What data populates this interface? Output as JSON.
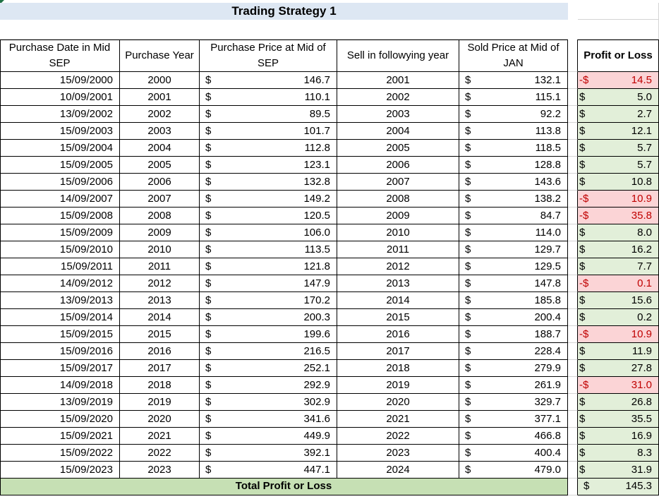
{
  "title": "Trading Strategy  1",
  "headers": {
    "purchase_date": "Purchase Date in Mid SEP",
    "purchase_year": "Purchase Year",
    "purchase_price": "Purchase Price at Mid of SEP",
    "sell_year": "Sell in followying year",
    "sold_price": "Sold Price at Mid of JAN",
    "profit": "Profit or Loss"
  },
  "currency_symbol": "$",
  "negative_currency_symbol": "-$",
  "rows": [
    {
      "date": "15/09/2000",
      "year": "2000",
      "buy": "146.7",
      "sell_year": "2001",
      "sold": "132.1",
      "pl": "14.5",
      "neg": true
    },
    {
      "date": "10/09/2001",
      "year": "2001",
      "buy": "110.1",
      "sell_year": "2002",
      "sold": "115.1",
      "pl": "5.0",
      "neg": false
    },
    {
      "date": "13/09/2002",
      "year": "2002",
      "buy": "89.5",
      "sell_year": "2003",
      "sold": "92.2",
      "pl": "2.7",
      "neg": false
    },
    {
      "date": "15/09/2003",
      "year": "2003",
      "buy": "101.7",
      "sell_year": "2004",
      "sold": "113.8",
      "pl": "12.1",
      "neg": false
    },
    {
      "date": "15/09/2004",
      "year": "2004",
      "buy": "112.8",
      "sell_year": "2005",
      "sold": "118.5",
      "pl": "5.7",
      "neg": false
    },
    {
      "date": "15/09/2005",
      "year": "2005",
      "buy": "123.1",
      "sell_year": "2006",
      "sold": "128.8",
      "pl": "5.7",
      "neg": false
    },
    {
      "date": "15/09/2006",
      "year": "2006",
      "buy": "132.8",
      "sell_year": "2007",
      "sold": "143.6",
      "pl": "10.8",
      "neg": false
    },
    {
      "date": "14/09/2007",
      "year": "2007",
      "buy": "149.2",
      "sell_year": "2008",
      "sold": "138.2",
      "pl": "10.9",
      "neg": true
    },
    {
      "date": "15/09/2008",
      "year": "2008",
      "buy": "120.5",
      "sell_year": "2009",
      "sold": "84.7",
      "pl": "35.8",
      "neg": true
    },
    {
      "date": "15/09/2009",
      "year": "2009",
      "buy": "106.0",
      "sell_year": "2010",
      "sold": "114.0",
      "pl": "8.0",
      "neg": false
    },
    {
      "date": "15/09/2010",
      "year": "2010",
      "buy": "113.5",
      "sell_year": "2011",
      "sold": "129.7",
      "pl": "16.2",
      "neg": false
    },
    {
      "date": "15/09/2011",
      "year": "2011",
      "buy": "121.8",
      "sell_year": "2012",
      "sold": "129.5",
      "pl": "7.7",
      "neg": false
    },
    {
      "date": "14/09/2012",
      "year": "2012",
      "buy": "147.9",
      "sell_year": "2013",
      "sold": "147.8",
      "pl": "0.1",
      "neg": true
    },
    {
      "date": "13/09/2013",
      "year": "2013",
      "buy": "170.2",
      "sell_year": "2014",
      "sold": "185.8",
      "pl": "15.6",
      "neg": false
    },
    {
      "date": "15/09/2014",
      "year": "2014",
      "buy": "200.3",
      "sell_year": "2015",
      "sold": "200.4",
      "pl": "0.2",
      "neg": false
    },
    {
      "date": "15/09/2015",
      "year": "2015",
      "buy": "199.6",
      "sell_year": "2016",
      "sold": "188.7",
      "pl": "10.9",
      "neg": true
    },
    {
      "date": "15/09/2016",
      "year": "2016",
      "buy": "216.5",
      "sell_year": "2017",
      "sold": "228.4",
      "pl": "11.9",
      "neg": false
    },
    {
      "date": "15/09/2017",
      "year": "2017",
      "buy": "252.1",
      "sell_year": "2018",
      "sold": "279.9",
      "pl": "27.8",
      "neg": false
    },
    {
      "date": "14/09/2018",
      "year": "2018",
      "buy": "292.9",
      "sell_year": "2019",
      "sold": "261.9",
      "pl": "31.0",
      "neg": true
    },
    {
      "date": "13/09/2019",
      "year": "2019",
      "buy": "302.9",
      "sell_year": "2020",
      "sold": "329.7",
      "pl": "26.8",
      "neg": false
    },
    {
      "date": "15/09/2020",
      "year": "2020",
      "buy": "341.6",
      "sell_year": "2021",
      "sold": "377.1",
      "pl": "35.5",
      "neg": false
    },
    {
      "date": "15/09/2021",
      "year": "2021",
      "buy": "449.9",
      "sell_year": "2022",
      "sold": "466.8",
      "pl": "16.9",
      "neg": false
    },
    {
      "date": "15/09/2022",
      "year": "2022",
      "buy": "392.1",
      "sell_year": "2023",
      "sold": "400.4",
      "pl": "8.3",
      "neg": false
    },
    {
      "date": "15/09/2023",
      "year": "2023",
      "buy": "447.1",
      "sell_year": "2024",
      "sold": "479.0",
      "pl": "31.9",
      "neg": false
    }
  ],
  "total": {
    "label": "Total Profit or Loss",
    "value": "145.3"
  },
  "colors": {
    "title_bg": "#dde7f3",
    "profit_bg": "#e2efd9",
    "loss_bg": "#fbd4d6",
    "loss_text": "#c00000",
    "total_bg": "#c6e0b4"
  }
}
